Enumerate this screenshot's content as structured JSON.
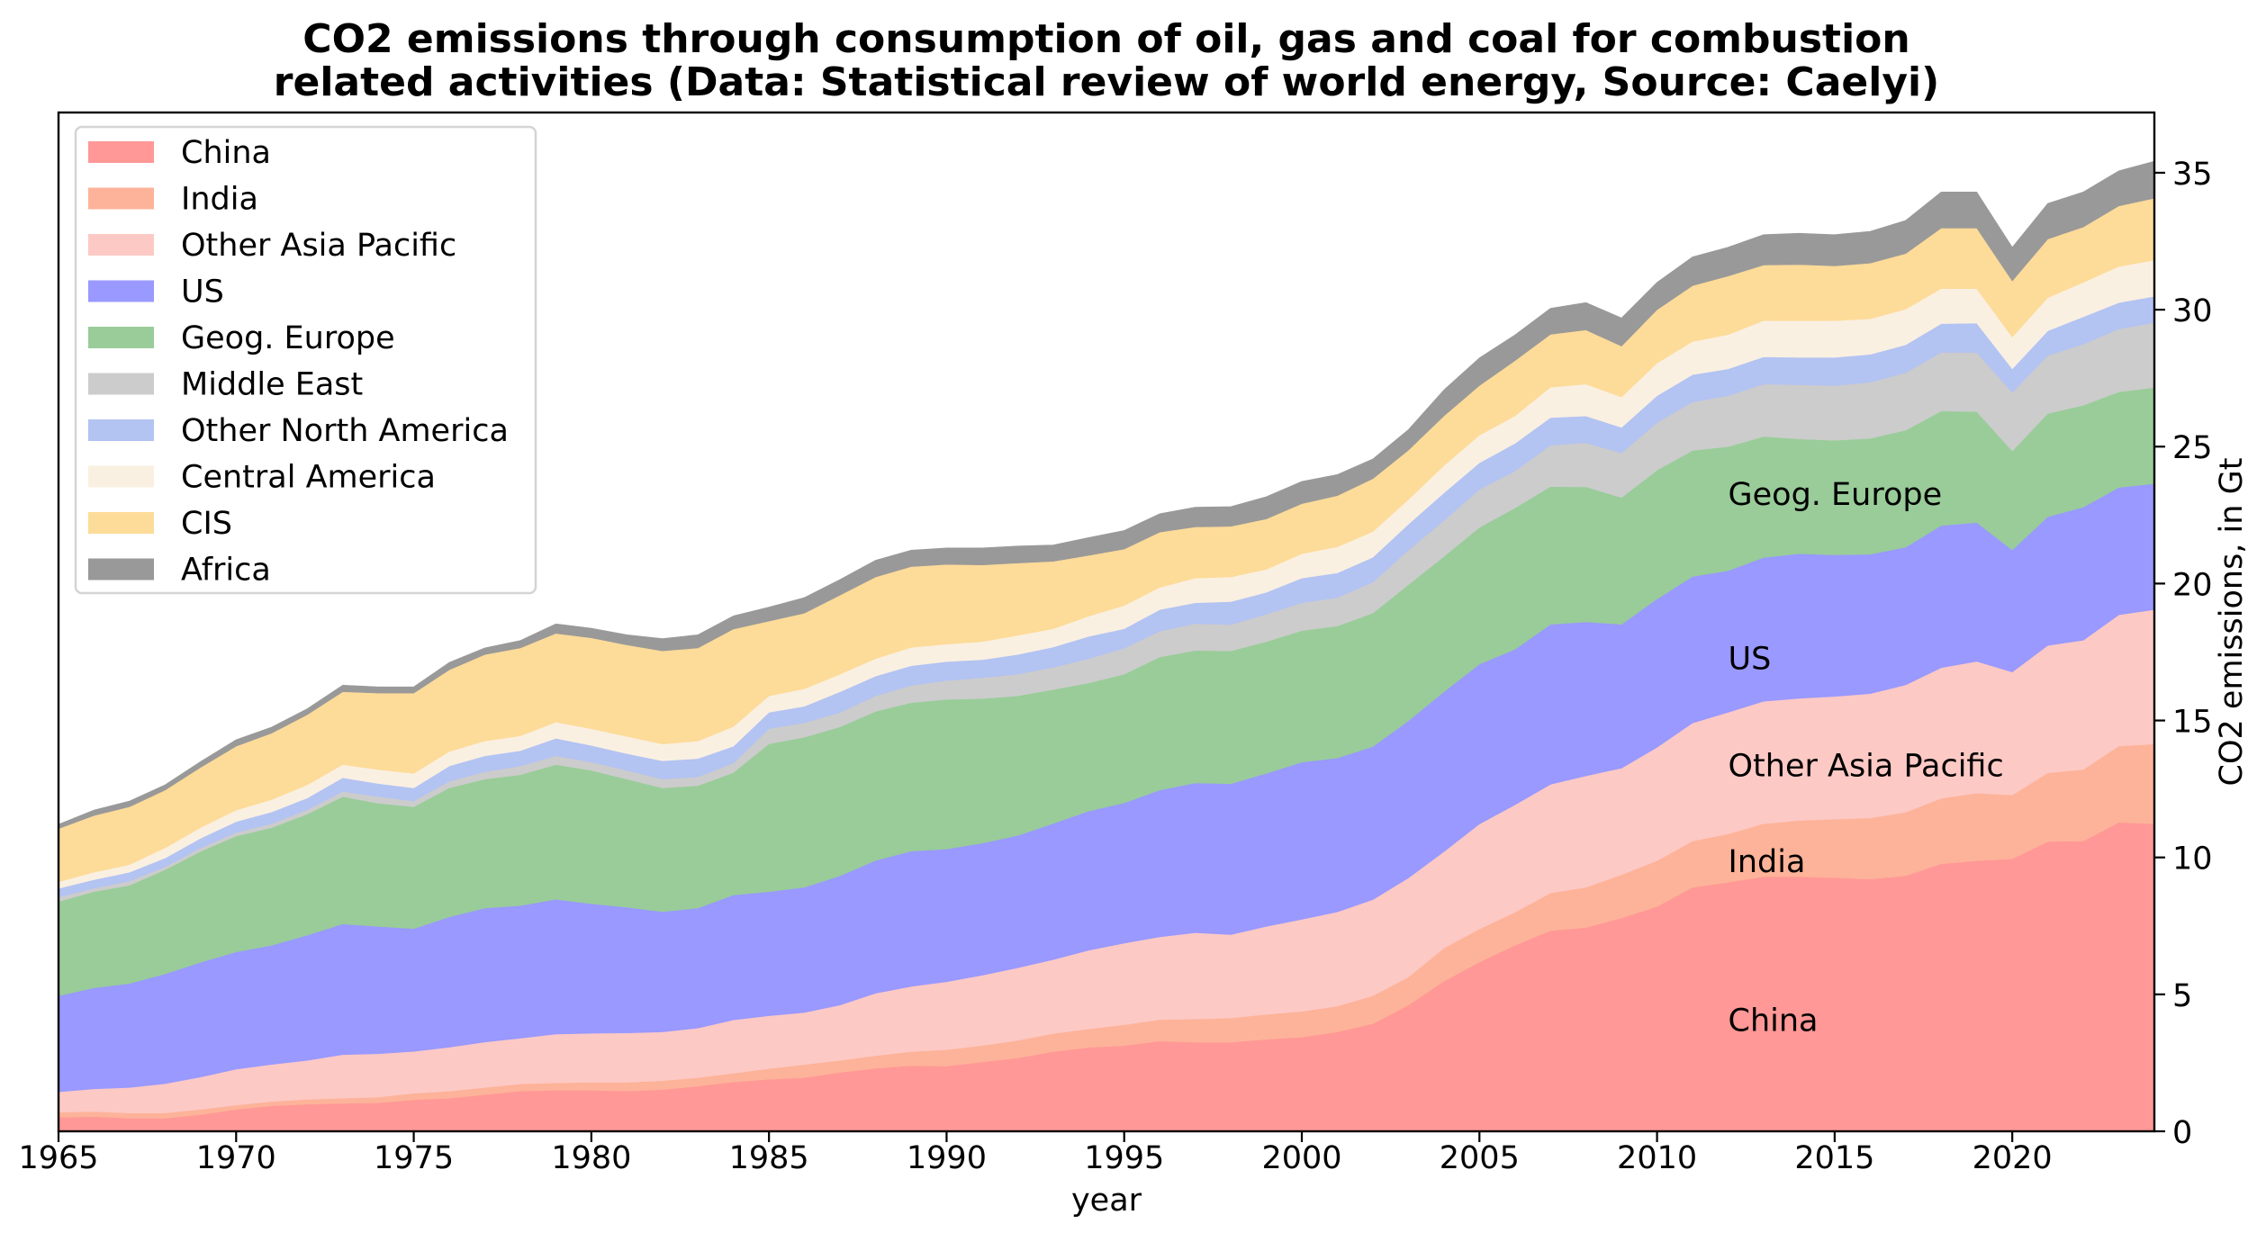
{
  "chart_data": {
    "type": "area",
    "stacked": true,
    "title": "CO2 emissions through consumption of oil, gas and coal for combustion\nrelated activities (Data: Statistical review of world energy, Source: Caelyi)",
    "title_lines": [
      "CO2 emissions through consumption of oil, gas and coal for combustion",
      "related activities (Data: Statistical review of world energy, Source: Caelyi)"
    ],
    "xlabel": "year",
    "ylabel": "CO2 emissions, in Gt",
    "y_axis_side": "right",
    "xlim": [
      1965,
      2024
    ],
    "ylim": [
      0,
      37.2
    ],
    "x_ticks": [
      1965,
      1970,
      1975,
      1980,
      1985,
      1990,
      1995,
      2000,
      2005,
      2010,
      2015,
      2020
    ],
    "y_ticks": [
      0,
      5,
      10,
      15,
      20,
      25,
      30,
      35
    ],
    "grid": false,
    "legend_position": "upper-left",
    "x": [
      1965,
      1966,
      1967,
      1968,
      1969,
      1970,
      1971,
      1972,
      1973,
      1974,
      1975,
      1976,
      1977,
      1978,
      1979,
      1980,
      1981,
      1982,
      1983,
      1984,
      1985,
      1986,
      1987,
      1988,
      1989,
      1990,
      1991,
      1992,
      1993,
      1994,
      1995,
      1996,
      1997,
      1998,
      1999,
      2000,
      2001,
      2002,
      2003,
      2004,
      2005,
      2006,
      2007,
      2008,
      2009,
      2010,
      2011,
      2012,
      2013,
      2014,
      2015,
      2016,
      2017,
      2018,
      2019,
      2020,
      2021,
      2022,
      2023,
      2024
    ],
    "series": [
      {
        "name": "China",
        "color": "#ff9896",
        "values": [
          0.51,
          0.54,
          0.48,
          0.48,
          0.61,
          0.8,
          0.93,
          0.99,
          1.02,
          1.04,
          1.15,
          1.21,
          1.34,
          1.47,
          1.5,
          1.5,
          1.47,
          1.52,
          1.65,
          1.8,
          1.9,
          1.96,
          2.15,
          2.3,
          2.4,
          2.38,
          2.53,
          2.68,
          2.91,
          3.06,
          3.13,
          3.29,
          3.25,
          3.25,
          3.36,
          3.44,
          3.63,
          3.93,
          4.61,
          5.48,
          6.18,
          6.79,
          7.33,
          7.44,
          7.79,
          8.21,
          8.91,
          9.09,
          9.3,
          9.3,
          9.26,
          9.21,
          9.33,
          9.77,
          9.88,
          9.95,
          10.58,
          10.6,
          11.28,
          11.23
        ]
      },
      {
        "name": "India",
        "color": "#fdb399",
        "values": [
          0.19,
          0.18,
          0.19,
          0.19,
          0.19,
          0.16,
          0.16,
          0.18,
          0.19,
          0.21,
          0.24,
          0.26,
          0.26,
          0.26,
          0.27,
          0.29,
          0.32,
          0.33,
          0.31,
          0.32,
          0.39,
          0.48,
          0.44,
          0.46,
          0.51,
          0.6,
          0.6,
          0.64,
          0.66,
          0.68,
          0.76,
          0.79,
          0.85,
          0.89,
          0.91,
          0.94,
          0.94,
          1.02,
          1.02,
          1.21,
          1.21,
          1.21,
          1.37,
          1.47,
          1.58,
          1.67,
          1.69,
          1.77,
          1.93,
          2.05,
          2.14,
          2.23,
          2.32,
          2.39,
          2.47,
          2.33,
          2.51,
          2.61,
          2.79,
          2.91
        ]
      },
      {
        "name": "Other Asia Pacific",
        "color": "#fdc9c5",
        "values": [
          0.74,
          0.83,
          0.93,
          1.07,
          1.18,
          1.31,
          1.35,
          1.42,
          1.59,
          1.58,
          1.53,
          1.6,
          1.66,
          1.67,
          1.78,
          1.79,
          1.8,
          1.78,
          1.81,
          1.95,
          1.93,
          1.9,
          2.02,
          2.28,
          2.38,
          2.48,
          2.57,
          2.65,
          2.7,
          2.87,
          2.98,
          3.02,
          3.15,
          3.04,
          3.21,
          3.36,
          3.44,
          3.51,
          3.62,
          3.52,
          3.83,
          3.92,
          3.97,
          4.07,
          3.89,
          4.14,
          4.31,
          4.44,
          4.47,
          4.46,
          4.48,
          4.54,
          4.65,
          4.77,
          4.81,
          4.49,
          4.65,
          4.72,
          4.79,
          4.91
        ]
      },
      {
        "name": "US",
        "color": "#9999ff",
        "values": [
          3.51,
          3.69,
          3.8,
          4.01,
          4.19,
          4.28,
          4.35,
          4.57,
          4.77,
          4.65,
          4.48,
          4.76,
          4.89,
          4.84,
          4.92,
          4.73,
          4.59,
          4.39,
          4.38,
          4.56,
          4.53,
          4.57,
          4.72,
          4.85,
          4.94,
          4.85,
          4.82,
          4.83,
          4.97,
          5.08,
          5.12,
          5.36,
          5.47,
          5.51,
          5.59,
          5.74,
          5.62,
          5.59,
          5.74,
          5.84,
          5.84,
          5.68,
          5.84,
          5.62,
          5.25,
          5.42,
          5.35,
          5.17,
          5.25,
          5.28,
          5.17,
          5.09,
          5.03,
          5.19,
          5.07,
          4.46,
          4.7,
          4.86,
          4.65,
          4.6
        ]
      },
      {
        "name": "Geog. Europe",
        "color": "#99cc99",
        "values": [
          3.44,
          3.51,
          3.58,
          3.8,
          4.05,
          4.23,
          4.3,
          4.42,
          4.65,
          4.5,
          4.45,
          4.71,
          4.71,
          4.78,
          4.92,
          4.87,
          4.68,
          4.52,
          4.47,
          4.47,
          5.4,
          5.48,
          5.44,
          5.44,
          5.42,
          5.46,
          5.28,
          5.1,
          4.89,
          4.68,
          4.7,
          4.86,
          4.84,
          4.85,
          4.81,
          4.8,
          4.82,
          4.87,
          4.97,
          4.94,
          4.99,
          5.16,
          5.03,
          4.93,
          4.63,
          4.7,
          4.6,
          4.53,
          4.42,
          4.19,
          4.18,
          4.23,
          4.27,
          4.18,
          4.05,
          3.61,
          3.77,
          3.72,
          3.49,
          3.51
        ]
      },
      {
        "name": "Middle East",
        "color": "#cccccc",
        "values": [
          0.16,
          0.13,
          0.16,
          0.11,
          0.13,
          0.13,
          0.14,
          0.16,
          0.19,
          0.24,
          0.21,
          0.24,
          0.27,
          0.32,
          0.32,
          0.3,
          0.32,
          0.32,
          0.32,
          0.35,
          0.55,
          0.53,
          0.52,
          0.57,
          0.63,
          0.69,
          0.76,
          0.79,
          0.81,
          0.89,
          0.95,
          0.94,
          0.98,
          0.96,
          1.0,
          1.02,
          1.04,
          1.13,
          1.26,
          1.31,
          1.39,
          1.35,
          1.51,
          1.61,
          1.63,
          1.74,
          1.77,
          1.86,
          1.91,
          1.98,
          2.0,
          2.05,
          2.1,
          2.14,
          2.16,
          2.14,
          2.12,
          2.23,
          2.3,
          2.37
        ]
      },
      {
        "name": "Other North America",
        "color": "#b3c3f2",
        "values": [
          0.32,
          0.31,
          0.32,
          0.32,
          0.35,
          0.4,
          0.43,
          0.43,
          0.5,
          0.48,
          0.48,
          0.56,
          0.58,
          0.56,
          0.64,
          0.61,
          0.61,
          0.67,
          0.67,
          0.61,
          0.6,
          0.6,
          0.76,
          0.72,
          0.72,
          0.69,
          0.66,
          0.72,
          0.74,
          0.81,
          0.71,
          0.79,
          0.76,
          0.84,
          0.8,
          0.9,
          0.9,
          0.91,
          0.95,
          1.01,
          0.97,
          1.01,
          1.01,
          0.98,
          0.93,
          0.98,
          1.0,
          0.98,
          1.0,
          1.0,
          1.03,
          1.02,
          1.02,
          1.05,
          1.07,
          0.86,
          0.9,
          1.0,
          0.96,
          0.96
        ]
      },
      {
        "name": "Central America",
        "color": "#faf0e1",
        "values": [
          0.24,
          0.27,
          0.28,
          0.37,
          0.39,
          0.42,
          0.45,
          0.48,
          0.48,
          0.51,
          0.53,
          0.53,
          0.54,
          0.54,
          0.59,
          0.61,
          0.63,
          0.61,
          0.64,
          0.72,
          0.6,
          0.64,
          0.64,
          0.64,
          0.67,
          0.64,
          0.66,
          0.7,
          0.67,
          0.74,
          0.85,
          0.81,
          0.9,
          0.9,
          0.84,
          0.89,
          0.95,
          0.94,
          0.9,
          1.0,
          1.01,
          1.0,
          1.11,
          1.16,
          1.11,
          1.19,
          1.21,
          1.25,
          1.32,
          1.34,
          1.34,
          1.3,
          1.3,
          1.28,
          1.26,
          1.16,
          1.21,
          1.26,
          1.32,
          1.32
        ]
      },
      {
        "name": "CIS",
        "color": "#fddb99",
        "values": [
          1.94,
          2.07,
          2.11,
          2.11,
          2.2,
          2.33,
          2.43,
          2.56,
          2.66,
          2.79,
          2.93,
          2.98,
          3.16,
          3.21,
          3.24,
          3.32,
          3.34,
          3.4,
          3.4,
          3.56,
          2.73,
          2.76,
          2.89,
          2.98,
          2.95,
          2.91,
          2.8,
          2.64,
          2.46,
          2.22,
          2.06,
          2.02,
          1.87,
          1.85,
          1.84,
          1.83,
          1.87,
          1.93,
          1.8,
          1.81,
          1.81,
          2.02,
          1.93,
          1.98,
          1.86,
          1.95,
          2.04,
          2.14,
          2.03,
          2.05,
          2.0,
          2.03,
          2.03,
          2.21,
          2.21,
          2.05,
          2.14,
          2.02,
          2.21,
          2.26
        ]
      },
      {
        "name": "Africa",
        "color": "#999999",
        "values": [
          0.16,
          0.2,
          0.21,
          0.19,
          0.21,
          0.24,
          0.22,
          0.22,
          0.24,
          0.23,
          0.23,
          0.27,
          0.24,
          0.27,
          0.35,
          0.35,
          0.37,
          0.45,
          0.48,
          0.48,
          0.51,
          0.57,
          0.57,
          0.61,
          0.6,
          0.6,
          0.62,
          0.62,
          0.6,
          0.65,
          0.68,
          0.67,
          0.72,
          0.72,
          0.81,
          0.81,
          0.77,
          0.72,
          0.75,
          0.95,
          1.01,
          0.94,
          0.95,
          1.0,
          1.03,
          1.0,
          1.05,
          1.05,
          1.11,
          1.14,
          1.14,
          1.16,
          1.21,
          1.32,
          1.32,
          1.23,
          1.3,
          1.28,
          1.28,
          1.35
        ]
      }
    ],
    "annotations": [
      {
        "text": "China",
        "x": 2012,
        "y": 4.0
      },
      {
        "text": "India",
        "x": 2012,
        "y": 9.8
      },
      {
        "text": "Other Asia Pacific",
        "x": 2012,
        "y": 13.3
      },
      {
        "text": "US",
        "x": 2012,
        "y": 17.2
      },
      {
        "text": "Geog. Europe",
        "x": 2012,
        "y": 23.2
      }
    ]
  }
}
